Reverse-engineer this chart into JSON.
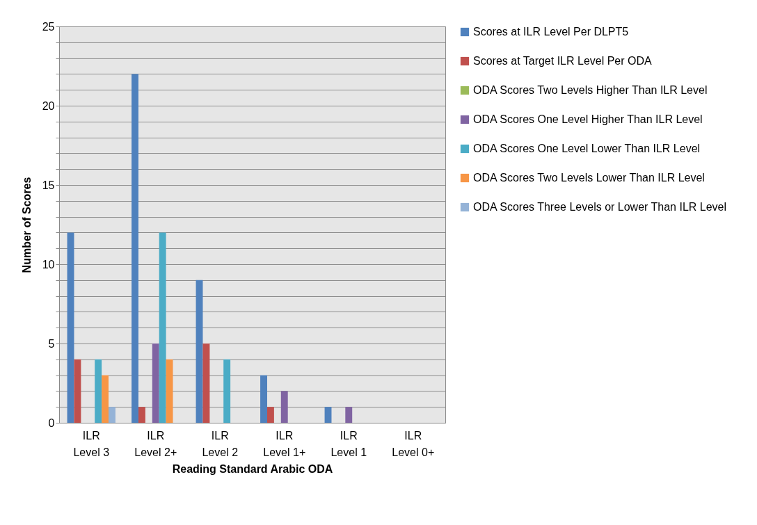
{
  "chart_data": {
    "type": "bar",
    "xlabel": "Reading Standard Arabic ODA",
    "ylabel": "Number of Scores",
    "categories": [
      "ILR Level 3",
      "ILR Level 2+",
      "ILR Level 2",
      "ILR Level 1+",
      "ILR Level 1",
      "ILR Level 0+"
    ],
    "series": [
      {
        "name": "Scores at ILR Level Per DLPT5",
        "color": "#4f81bd",
        "values": [
          12,
          22,
          9,
          3,
          1,
          0
        ]
      },
      {
        "name": "Scores at Target ILR Level Per ODA",
        "color": "#c0504d",
        "values": [
          4,
          1,
          5,
          1,
          0,
          0
        ]
      },
      {
        "name": "ODA Scores Two Levels Higher Than ILR Level",
        "color": "#9bbb59",
        "values": [
          0,
          0,
          0,
          0,
          0,
          0
        ]
      },
      {
        "name": "ODA Scores One Level Higher Than ILR Level",
        "color": "#8064a2",
        "values": [
          0,
          5,
          0,
          2,
          1,
          0
        ]
      },
      {
        "name": "ODA Scores One Level Lower Than ILR Level",
        "color": "#4bacc6",
        "values": [
          4,
          12,
          4,
          0,
          0,
          0
        ]
      },
      {
        "name": "ODA Scores Two Levels Lower Than ILR Level",
        "color": "#f79646",
        "values": [
          3,
          4,
          0,
          0,
          0,
          0
        ]
      },
      {
        "name": "ODA Scores Three Levels or Lower Than ILR Level",
        "color": "#95b3d7",
        "values": [
          1,
          0,
          0,
          0,
          0,
          0
        ]
      }
    ],
    "ylim": [
      0,
      25
    ],
    "yticks": [
      0,
      {
        "value": 1,
        "label": null
      },
      {
        "value": 2,
        "label": null
      },
      {
        "value": 3,
        "label": null
      },
      {
        "value": 4,
        "label": null
      },
      5,
      {
        "value": 6,
        "label": null
      },
      {
        "value": 7,
        "label": null
      },
      {
        "value": 8,
        "label": null
      },
      {
        "value": 9,
        "label": null
      },
      10,
      {
        "value": 11,
        "label": null
      },
      {
        "value": 12,
        "label": null
      },
      {
        "value": 13,
        "label": null
      },
      {
        "value": 14,
        "label": null
      },
      15,
      {
        "value": 16,
        "label": null
      },
      {
        "value": 17,
        "label": null
      },
      {
        "value": 18,
        "label": null
      },
      {
        "value": 19,
        "label": null
      },
      20,
      {
        "value": 21,
        "label": null
      },
      {
        "value": 22,
        "label": null
      },
      {
        "value": 23,
        "label": null
      },
      {
        "value": 24,
        "label": null
      },
      25
    ],
    "grid": true,
    "legend": "right"
  }
}
